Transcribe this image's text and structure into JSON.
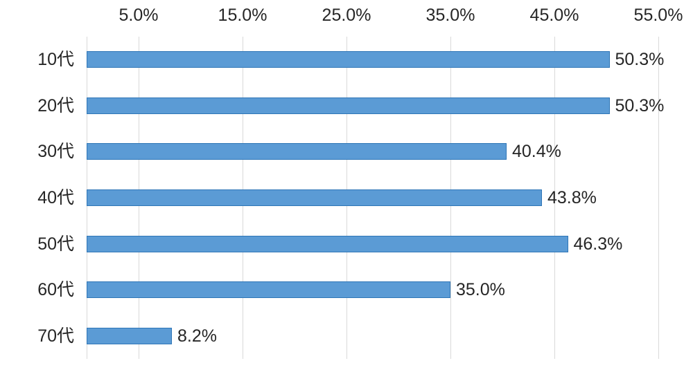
{
  "chart_data": {
    "type": "bar",
    "orientation": "horizontal",
    "title": "",
    "xlabel": "",
    "ylabel": "",
    "categories": [
      "10代",
      "20代",
      "30代",
      "40代",
      "50代",
      "60代",
      "70代"
    ],
    "values": [
      50.3,
      50.3,
      40.4,
      43.8,
      46.3,
      35.0,
      8.2
    ],
    "value_labels": [
      "50.3%",
      "50.3%",
      "40.4%",
      "43.8%",
      "46.3%",
      "35.0%",
      "8.2%"
    ],
    "x_tick_labels": [
      "5.0%",
      "15.0%",
      "25.0%",
      "35.0%",
      "45.0%",
      "55.0%"
    ],
    "x_tick_values": [
      5,
      15,
      25,
      35,
      45,
      55
    ],
    "xlim": [
      0,
      55
    ],
    "gridlines_at": [
      0,
      5,
      15,
      25,
      35,
      45,
      55
    ],
    "grid": "vertical-only",
    "legend": "none",
    "axis_position": "top",
    "colors": {
      "bar_fill": "#5B9BD5",
      "bar_border": "#2E75B6",
      "gridline": "#D9D9D9",
      "text": "#262626",
      "background": "#FFFFFF"
    }
  }
}
